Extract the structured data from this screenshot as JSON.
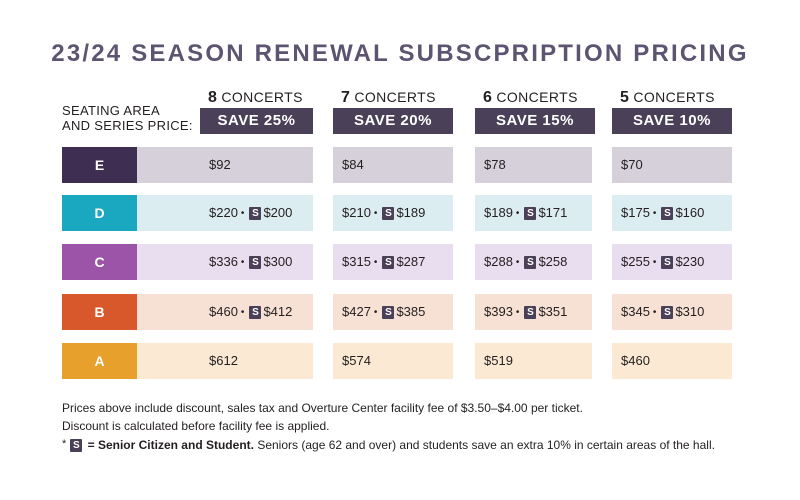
{
  "title": "23/24 SEASON RENEWAL SUBSCPRIPTION PRICING",
  "seating_label_line1": "SEATING AREA",
  "seating_label_line2": "AND SERIES PRICE:",
  "senior_symbol": "S",
  "bullet": "•",
  "columns": [
    {
      "num": "8",
      "label": "CONCERTS",
      "save": "SAVE 25%"
    },
    {
      "num": "7",
      "label": "CONCERTS",
      "save": "SAVE 20%"
    },
    {
      "num": "6",
      "label": "CONCERTS",
      "save": "SAVE 15%"
    },
    {
      "num": "5",
      "label": "CONCERTS",
      "save": "SAVE 10%"
    }
  ],
  "rows": [
    {
      "area": "E",
      "color": "#3d2e52",
      "tint": "#d5d0d9",
      "prices": [
        {
          "price": "$92"
        },
        {
          "price": "$84"
        },
        {
          "price": "$78"
        },
        {
          "price": "$70"
        }
      ]
    },
    {
      "area": "D",
      "color": "#1aa7c0",
      "tint": "#dcedf1",
      "prices": [
        {
          "price": "$220",
          "senior": "$200"
        },
        {
          "price": "$210",
          "senior": "$189"
        },
        {
          "price": "$189",
          "senior": "$171"
        },
        {
          "price": "$175",
          "senior": "$160"
        }
      ]
    },
    {
      "area": "C",
      "color": "#9c54a8",
      "tint": "#e9def0",
      "prices": [
        {
          "price": "$336",
          "senior": "$300"
        },
        {
          "price": "$315",
          "senior": "$287"
        },
        {
          "price": "$288",
          "senior": "$258"
        },
        {
          "price": "$255",
          "senior": "$230"
        }
      ]
    },
    {
      "area": "B",
      "color": "#d9582b",
      "tint": "#f7e1d4",
      "prices": [
        {
          "price": "$460",
          "senior": "$412"
        },
        {
          "price": "$427",
          "senior": "$385"
        },
        {
          "price": "$393",
          "senior": "$351"
        },
        {
          "price": "$345",
          "senior": "$310"
        }
      ]
    },
    {
      "area": "A",
      "color": "#e8a02d",
      "tint": "#fbe9d3",
      "prices": [
        {
          "price": "$612"
        },
        {
          "price": "$574"
        },
        {
          "price": "$519"
        },
        {
          "price": "$460"
        }
      ]
    }
  ],
  "notes": {
    "line1": "Prices above include discount, sales tax and Overture Center facility fee of $3.50–$4.00 per ticket.",
    "line2": "Discount is calculated before facility fee is applied.",
    "asterisk": "*",
    "legend_bold": "= Senior Citizen and Student.",
    "legend_rest": "Seniors (age 62 and over) and students save an extra 10% in certain areas of the hall."
  }
}
